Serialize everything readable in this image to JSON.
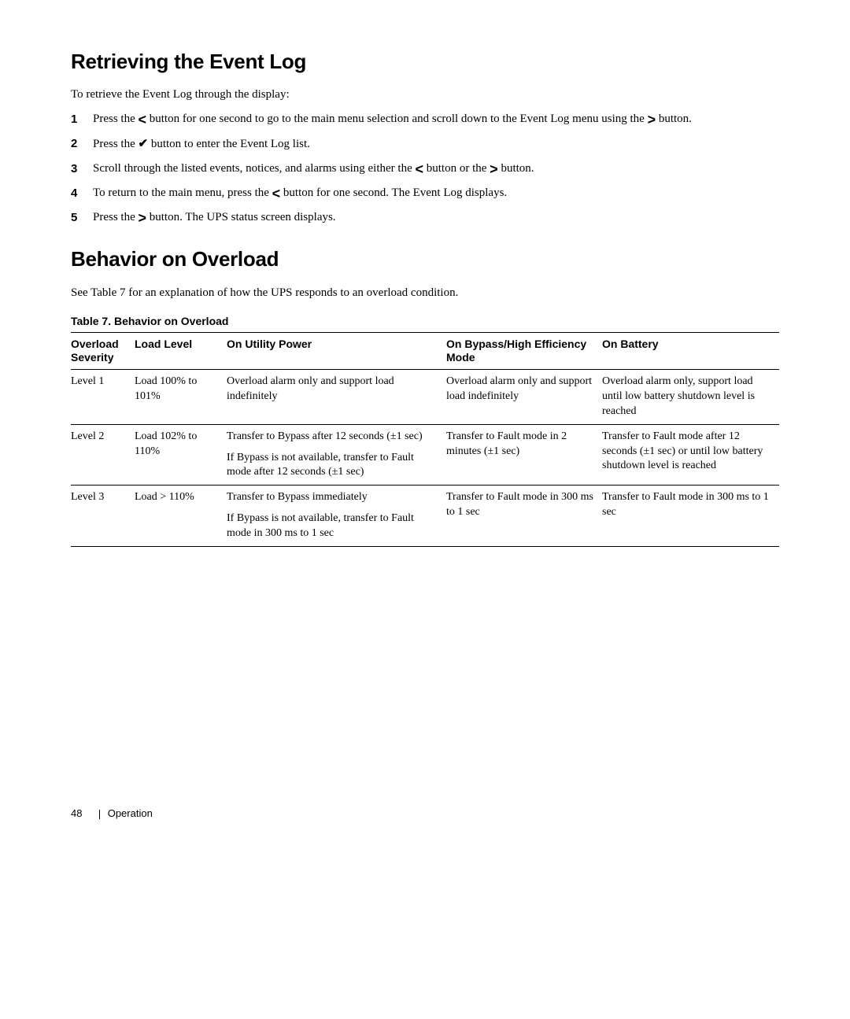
{
  "section1": {
    "heading": "Retrieving the Event Log",
    "intro": "To retrieve the Event Log through the display:",
    "steps": [
      {
        "n": "1",
        "pre": "Press the ",
        "sym": "<",
        "post": " button for one second to go to the main menu selection and scroll down to the Event Log menu using the ",
        "sym2": ">",
        "post2": " button."
      },
      {
        "n": "2",
        "pre": "Press the ",
        "sym": "✔",
        "post": " button to enter the Event Log list."
      },
      {
        "n": "3",
        "pre": "Scroll through the listed events, notices, and alarms using either the ",
        "sym": "<",
        "post": " button or the ",
        "sym2": ">",
        "post2": " button."
      },
      {
        "n": "4",
        "pre": "To return to the main menu, press the ",
        "sym": "<",
        "post": " button for one second. The Event Log displays."
      },
      {
        "n": "5",
        "pre": "Press the ",
        "sym": ">",
        "post": " button. The UPS status screen displays."
      }
    ]
  },
  "section2": {
    "heading": "Behavior on Overload",
    "intro": "See Table 7 for an explanation of how the UPS responds to an overload condition.",
    "tableCaption": "Table 7. Behavior on Overload",
    "headers": {
      "severity": "Overload Severity",
      "loadLevel": "Load Level",
      "onUtility": "On Utility Power",
      "onBypass": "On Bypass/High Efficiency Mode",
      "onBattery": "On Battery"
    },
    "rows": [
      {
        "severity": "Level 1",
        "loadLevel": "Load 100% to 101%",
        "onUtility": "Overload alarm only and support load indefinitely",
        "onBypass": "Overload alarm only and support load indefinitely",
        "onBattery": "Overload alarm only, support load until low battery shutdown level is reached"
      },
      {
        "severity": "Level 2",
        "loadLevel": "Load 102% to 110%",
        "onUtility": "Transfer to Bypass after 12 seconds (±1 sec)",
        "onUtility2": "If Bypass is not available, transfer to Fault mode after 12 seconds (±1 sec)",
        "onBypass": "Transfer to Fault mode in 2 minutes (±1 sec)",
        "onBattery": "Transfer to Fault mode after 12 seconds (±1 sec) or until low battery shutdown level is reached"
      },
      {
        "severity": "Level 3",
        "loadLevel": "Load > 110%",
        "onUtility": "Transfer to Bypass immediately",
        "onUtility2": "If Bypass is not available, transfer to Fault mode in 300 ms to 1 sec",
        "onBypass": "Transfer to Fault mode in 300 ms to 1 sec",
        "onBattery": "Transfer to Fault mode in 300 ms to 1 sec"
      }
    ]
  },
  "footer": {
    "page": "48",
    "section": "Operation"
  }
}
